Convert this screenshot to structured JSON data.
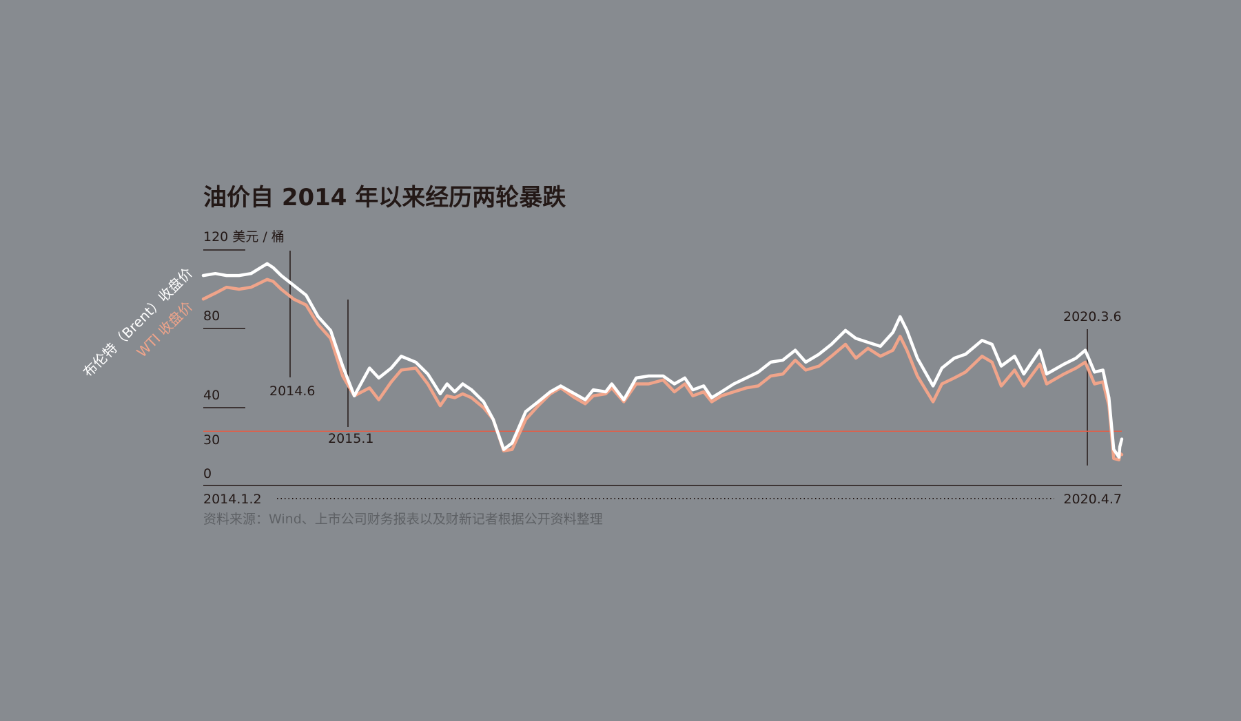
{
  "chart_data": {
    "type": "line",
    "title": "油价自 2014 年以来经历两轮暴跌",
    "unit_label": "120 美元 / 桶",
    "y_ticks": [
      "80",
      "40",
      "30",
      "0"
    ],
    "ylim": [
      0,
      120
    ],
    "x_start_label": "2014.1.2",
    "x_end_label": "2020.4.7",
    "x_range": [
      "2014-01-02",
      "2020-04-07"
    ],
    "reference_line": {
      "value": 34,
      "color": "#e0604a"
    },
    "annotations": [
      {
        "date": "2014-06-20",
        "label": "2014.6"
      },
      {
        "date": "2015-01-13",
        "label": "2015.1"
      },
      {
        "date": "2020-03-06",
        "label": "2020.3.6"
      }
    ],
    "source": "资料来源：Wind、上市公司财务报表以及财新记者根据公开资料整理",
    "series": [
      {
        "name": "布伦特（Brent）收盘价",
        "color": "#ffffff",
        "points": [
          [
            "2014-01-02",
            107
          ],
          [
            "2014-02-01",
            108
          ],
          [
            "2014-03-01",
            107
          ],
          [
            "2014-04-01",
            107
          ],
          [
            "2014-05-01",
            108
          ],
          [
            "2014-06-10",
            113
          ],
          [
            "2014-06-25",
            111
          ],
          [
            "2014-07-15",
            107
          ],
          [
            "2014-08-15",
            102
          ],
          [
            "2014-09-15",
            97
          ],
          [
            "2014-10-15",
            86
          ],
          [
            "2014-11-15",
            79
          ],
          [
            "2014-12-15",
            61
          ],
          [
            "2015-01-13",
            46
          ],
          [
            "2015-02-01",
            53
          ],
          [
            "2015-02-20",
            60
          ],
          [
            "2015-03-15",
            55
          ],
          [
            "2015-04-15",
            60
          ],
          [
            "2015-05-10",
            66
          ],
          [
            "2015-06-15",
            63
          ],
          [
            "2015-07-15",
            57
          ],
          [
            "2015-08-15",
            47
          ],
          [
            "2015-09-01",
            52
          ],
          [
            "2015-09-20",
            48
          ],
          [
            "2015-10-10",
            52
          ],
          [
            "2015-11-01",
            49
          ],
          [
            "2015-12-01",
            43
          ],
          [
            "2015-12-25",
            37
          ],
          [
            "2016-01-20",
            28
          ],
          [
            "2016-02-10",
            31
          ],
          [
            "2016-03-15",
            39
          ],
          [
            "2016-04-15",
            43
          ],
          [
            "2016-05-15",
            48
          ],
          [
            "2016-06-10",
            51
          ],
          [
            "2016-07-15",
            47
          ],
          [
            "2016-08-10",
            44
          ],
          [
            "2016-08-30",
            49
          ],
          [
            "2016-09-30",
            48
          ],
          [
            "2016-10-15",
            52
          ],
          [
            "2016-11-14",
            44
          ],
          [
            "2016-12-15",
            55
          ],
          [
            "2017-01-15",
            56
          ],
          [
            "2017-02-20",
            56
          ],
          [
            "2017-03-20",
            52
          ],
          [
            "2017-04-15",
            55
          ],
          [
            "2017-05-05",
            49
          ],
          [
            "2017-06-01",
            51
          ],
          [
            "2017-06-21",
            45
          ],
          [
            "2017-07-15",
            48
          ],
          [
            "2017-08-15",
            52
          ],
          [
            "2017-09-15",
            55
          ],
          [
            "2017-10-15",
            58
          ],
          [
            "2017-11-15",
            63
          ],
          [
            "2017-12-15",
            64
          ],
          [
            "2018-01-15",
            69
          ],
          [
            "2018-02-10",
            63
          ],
          [
            "2018-03-15",
            67
          ],
          [
            "2018-04-15",
            72
          ],
          [
            "2018-05-20",
            79
          ],
          [
            "2018-06-15",
            75
          ],
          [
            "2018-07-15",
            73
          ],
          [
            "2018-08-15",
            71
          ],
          [
            "2018-09-15",
            78
          ],
          [
            "2018-10-03",
            86
          ],
          [
            "2018-10-20",
            79
          ],
          [
            "2018-11-15",
            65
          ],
          [
            "2018-12-24",
            51
          ],
          [
            "2019-01-15",
            60
          ],
          [
            "2019-02-15",
            65
          ],
          [
            "2019-03-15",
            67
          ],
          [
            "2019-04-25",
            74
          ],
          [
            "2019-05-20",
            72
          ],
          [
            "2019-06-12",
            61
          ],
          [
            "2019-07-15",
            66
          ],
          [
            "2019-08-07",
            57
          ],
          [
            "2019-09-16",
            69
          ],
          [
            "2019-10-03",
            57
          ],
          [
            "2019-11-15",
            62
          ],
          [
            "2019-12-15",
            65
          ],
          [
            "2020-01-07",
            69
          ],
          [
            "2020-01-30",
            58
          ],
          [
            "2020-02-20",
            59
          ],
          [
            "2020-03-06",
            45
          ],
          [
            "2020-03-18",
            28
          ],
          [
            "2020-03-31",
            22
          ],
          [
            "2020-04-02",
            30
          ],
          [
            "2020-04-07",
            32
          ]
        ]
      },
      {
        "name": "WTI 收盘价",
        "color": "#f0a48a",
        "points": [
          [
            "2014-01-02",
            95
          ],
          [
            "2014-02-01",
            98
          ],
          [
            "2014-03-01",
            101
          ],
          [
            "2014-04-01",
            100
          ],
          [
            "2014-05-01",
            101
          ],
          [
            "2014-06-10",
            105
          ],
          [
            "2014-06-25",
            104
          ],
          [
            "2014-07-15",
            100
          ],
          [
            "2014-08-15",
            95
          ],
          [
            "2014-09-15",
            92
          ],
          [
            "2014-10-15",
            82
          ],
          [
            "2014-11-15",
            75
          ],
          [
            "2014-12-15",
            56
          ],
          [
            "2015-01-13",
            46
          ],
          [
            "2015-02-01",
            48
          ],
          [
            "2015-02-20",
            50
          ],
          [
            "2015-03-15",
            44
          ],
          [
            "2015-04-15",
            53
          ],
          [
            "2015-05-10",
            59
          ],
          [
            "2015-06-15",
            60
          ],
          [
            "2015-07-15",
            52
          ],
          [
            "2015-08-15",
            41
          ],
          [
            "2015-09-01",
            46
          ],
          [
            "2015-09-20",
            45
          ],
          [
            "2015-10-10",
            47
          ],
          [
            "2015-11-01",
            45
          ],
          [
            "2015-12-01",
            40
          ],
          [
            "2015-12-25",
            37
          ],
          [
            "2016-01-20",
            27
          ],
          [
            "2016-02-10",
            28
          ],
          [
            "2016-03-15",
            37
          ],
          [
            "2016-04-15",
            41
          ],
          [
            "2016-05-15",
            47
          ],
          [
            "2016-06-10",
            50
          ],
          [
            "2016-07-15",
            45
          ],
          [
            "2016-08-10",
            42
          ],
          [
            "2016-08-30",
            46
          ],
          [
            "2016-09-30",
            47
          ],
          [
            "2016-10-15",
            50
          ],
          [
            "2016-11-14",
            43
          ],
          [
            "2016-12-15",
            52
          ],
          [
            "2017-01-15",
            52
          ],
          [
            "2017-02-20",
            54
          ],
          [
            "2017-03-20",
            48
          ],
          [
            "2017-04-15",
            52
          ],
          [
            "2017-05-05",
            46
          ],
          [
            "2017-06-01",
            48
          ],
          [
            "2017-06-21",
            43
          ],
          [
            "2017-07-15",
            46
          ],
          [
            "2017-08-15",
            48
          ],
          [
            "2017-09-15",
            50
          ],
          [
            "2017-10-15",
            51
          ],
          [
            "2017-11-15",
            56
          ],
          [
            "2017-12-15",
            57
          ],
          [
            "2018-01-15",
            64
          ],
          [
            "2018-02-10",
            59
          ],
          [
            "2018-03-15",
            61
          ],
          [
            "2018-04-15",
            66
          ],
          [
            "2018-05-20",
            72
          ],
          [
            "2018-06-15",
            65
          ],
          [
            "2018-07-15",
            70
          ],
          [
            "2018-08-15",
            66
          ],
          [
            "2018-09-15",
            69
          ],
          [
            "2018-10-03",
            76
          ],
          [
            "2018-10-20",
            69
          ],
          [
            "2018-11-15",
            56
          ],
          [
            "2018-12-24",
            43
          ],
          [
            "2019-01-15",
            52
          ],
          [
            "2019-02-15",
            55
          ],
          [
            "2019-03-15",
            58
          ],
          [
            "2019-04-25",
            66
          ],
          [
            "2019-05-20",
            63
          ],
          [
            "2019-06-12",
            51
          ],
          [
            "2019-07-15",
            59
          ],
          [
            "2019-08-07",
            51
          ],
          [
            "2019-09-16",
            62
          ],
          [
            "2019-10-03",
            52
          ],
          [
            "2019-11-15",
            57
          ],
          [
            "2019-12-15",
            60
          ],
          [
            "2020-01-07",
            63
          ],
          [
            "2020-01-30",
            52
          ],
          [
            "2020-02-20",
            53
          ],
          [
            "2020-03-06",
            41
          ],
          [
            "2020-03-18",
            21
          ],
          [
            "2020-03-31",
            20
          ],
          [
            "2020-04-02",
            25
          ],
          [
            "2020-04-07",
            24
          ]
        ]
      }
    ]
  }
}
